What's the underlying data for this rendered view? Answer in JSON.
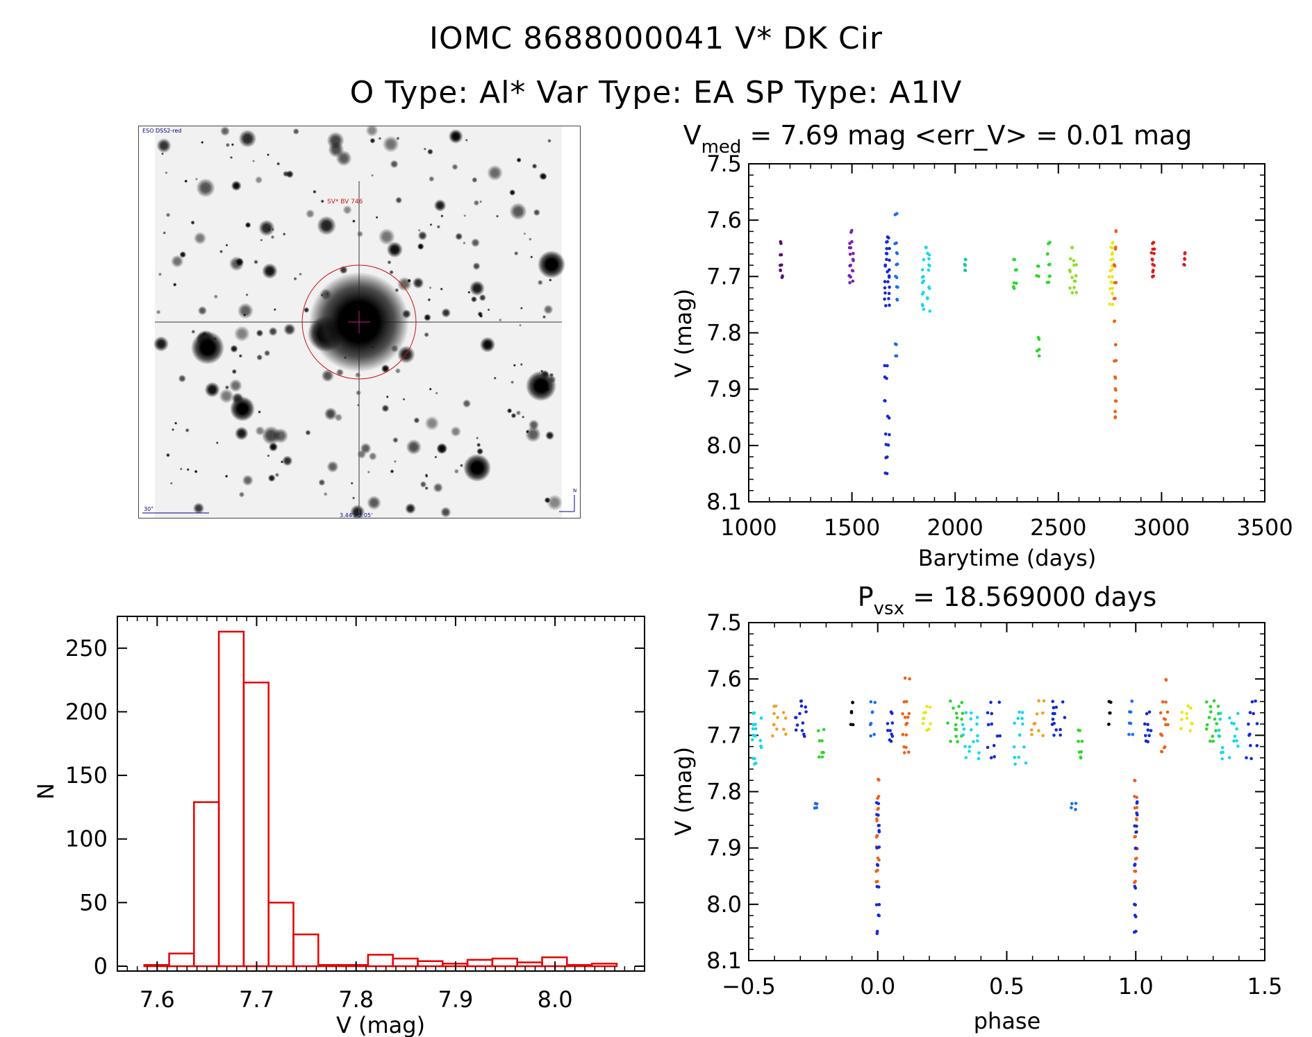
{
  "titles": {
    "line1": "IOMC 8688000041    V* DK Cir",
    "line2": "O Type: Al*  Var Type: EA  SP Type: A1IV"
  },
  "colors": {
    "histogram": "#e60000",
    "sky_marker": "#d01010",
    "sky_label": "#00008b",
    "point_palette": [
      "#000000",
      "#5a0a7a",
      "#7a1fb0",
      "#1428d8",
      "#1e6cf0",
      "#18d8e8",
      "#18c8a0",
      "#28d828",
      "#88e020",
      "#e8e818",
      "#f0a020",
      "#f06018",
      "#e01818"
    ]
  },
  "sky_image": {
    "survey_label": "ESO DSS2-red",
    "object_label": "SV* BV 746",
    "scale_label": "30\"",
    "fov_label": "3.44'x 3.05'",
    "north_label": "N"
  },
  "chart_data": [
    {
      "type": "scatter",
      "id": "lightcurve",
      "title": "V",
      "title_sub": "med",
      "title_rest": " = 7.69 mag <err_V> = 0.01 mag",
      "xlabel": "Barytime (days)",
      "ylabel": "V (mag)",
      "xlim": [
        1000,
        3500
      ],
      "ylim": [
        8.1,
        7.5
      ],
      "y_inverted": true,
      "xticks": [
        1000,
        1500,
        2000,
        2500,
        3000,
        3500
      ],
      "xtick_labels": [
        "1000",
        "1500",
        "2000",
        "2500",
        "3000",
        "3500"
      ],
      "yticks": [
        7.5,
        7.6,
        7.7,
        7.8,
        7.9,
        8.0,
        8.1
      ],
      "ytick_labels": [
        "7.5",
        "7.6",
        "7.7",
        "7.8",
        "7.9",
        "8.0",
        "8.1"
      ],
      "groups": [
        {
          "x": 1160,
          "xspread": 15,
          "ys": [
            7.64,
            7.66,
            7.68,
            7.69,
            7.7
          ],
          "color": "#5a0a7a"
        },
        {
          "x": 1495,
          "xspread": 25,
          "ys": [
            7.62,
            7.64,
            7.65,
            7.66,
            7.67,
            7.68,
            7.69,
            7.7,
            7.71
          ],
          "color": "#7a1fb0"
        },
        {
          "x": 1670,
          "xspread": 25,
          "ys": [
            7.63,
            7.64,
            7.65,
            7.66,
            7.67,
            7.68,
            7.69,
            7.7,
            7.71,
            7.72,
            7.73,
            7.74,
            7.75,
            7.86,
            7.88,
            7.92,
            7.95,
            7.98,
            8.0,
            8.02,
            8.05
          ],
          "color": "#1428d8"
        },
        {
          "x": 1715,
          "xspread": 15,
          "ys": [
            7.59,
            7.64,
            7.66,
            7.68,
            7.7,
            7.72,
            7.74,
            7.82,
            7.84
          ],
          "color": "#1e6cf0"
        },
        {
          "x": 1860,
          "xspread": 40,
          "ys": [
            7.65,
            7.66,
            7.67,
            7.68,
            7.69,
            7.7,
            7.71,
            7.72,
            7.73,
            7.74,
            7.75,
            7.76
          ],
          "color": "#18d8e8"
        },
        {
          "x": 2050,
          "xspread": 8,
          "ys": [
            7.67,
            7.68,
            7.69
          ],
          "color": "#18c8a0"
        },
        {
          "x": 2290,
          "xspread": 20,
          "ys": [
            7.67,
            7.69,
            7.71,
            7.72
          ],
          "color": "#28d828"
        },
        {
          "x": 2400,
          "xspread": 15,
          "ys": [
            7.68,
            7.7,
            7.81,
            7.83,
            7.84
          ],
          "color": "#28d828"
        },
        {
          "x": 2455,
          "xspread": 20,
          "ys": [
            7.64,
            7.66,
            7.68,
            7.7,
            7.71
          ],
          "color": "#28d828"
        },
        {
          "x": 2570,
          "xspread": 35,
          "ys": [
            7.65,
            7.67,
            7.68,
            7.69,
            7.7,
            7.71,
            7.72,
            7.73
          ],
          "color": "#88e020"
        },
        {
          "x": 2755,
          "xspread": 25,
          "ys": [
            7.64,
            7.65,
            7.66,
            7.67,
            7.68,
            7.69,
            7.7,
            7.71,
            7.72,
            7.73,
            7.75
          ],
          "color": "#e8e818"
        },
        {
          "x": 2775,
          "xspread": 10,
          "ys": [
            7.62,
            7.65,
            7.68,
            7.71,
            7.74,
            7.78,
            7.82,
            7.85,
            7.88,
            7.9,
            7.92,
            7.94,
            7.95
          ],
          "color": "#f06018"
        },
        {
          "x": 2960,
          "xspread": 18,
          "ys": [
            7.64,
            7.65,
            7.66,
            7.67,
            7.68,
            7.69,
            7.7
          ],
          "color": "#e01818"
        },
        {
          "x": 3110,
          "xspread": 8,
          "ys": [
            7.66,
            7.67,
            7.68
          ],
          "color": "#e01818"
        }
      ]
    },
    {
      "type": "scatter",
      "id": "phased",
      "title": "P",
      "title_sub": "vsx",
      "title_rest": " = 18.569000 days",
      "xlabel": "phase",
      "ylabel": "V (mag)",
      "xlim": [
        -0.5,
        1.5
      ],
      "ylim": [
        8.1,
        7.5
      ],
      "y_inverted": true,
      "xticks": [
        -0.5,
        0.0,
        0.5,
        1.0,
        1.5
      ],
      "xtick_labels": [
        "−0.5",
        "0.0",
        "0.5",
        "1.0",
        "1.5"
      ],
      "yticks": [
        7.5,
        7.6,
        7.7,
        7.8,
        7.9,
        8.0,
        8.1
      ],
      "ytick_labels": [
        "7.5",
        "7.6",
        "7.7",
        "7.8",
        "7.9",
        "8.0",
        "8.1"
      ],
      "groups": [
        {
          "x": -0.47,
          "xspread": 0.04,
          "ys": [
            7.66,
            7.67,
            7.68,
            7.69,
            7.7,
            7.71,
            7.72,
            7.74,
            7.75
          ],
          "color": "#18d8e8"
        },
        {
          "x": -0.38,
          "xspread": 0.06,
          "ys": [
            7.65,
            7.66,
            7.67,
            7.68,
            7.69,
            7.7
          ],
          "color": "#f0a020"
        },
        {
          "x": -0.3,
          "xspread": 0.05,
          "ys": [
            7.64,
            7.65,
            7.66,
            7.67,
            7.68,
            7.69,
            7.7
          ],
          "color": "#1428d8"
        },
        {
          "x": -0.24,
          "xspread": 0.02,
          "ys": [
            7.82,
            7.83
          ],
          "color": "#1e6cf0"
        },
        {
          "x": -0.22,
          "xspread": 0.03,
          "ys": [
            7.69,
            7.71,
            7.73,
            7.74
          ],
          "color": "#28d828"
        },
        {
          "x": -0.1,
          "xspread": 0.01,
          "ys": [
            7.64,
            7.66,
            7.68
          ],
          "color": "#000000"
        },
        {
          "x": -0.02,
          "xspread": 0.02,
          "ys": [
            7.64,
            7.66,
            7.68,
            7.7
          ],
          "color": "#1e6cf0"
        },
        {
          "x": 0.0,
          "xspread": 0.012,
          "ys": [
            7.78,
            7.81,
            7.83,
            7.85,
            7.88,
            7.9,
            7.92,
            7.94,
            7.96
          ],
          "color": "#f06018"
        },
        {
          "x": 0.0,
          "xspread": 0.012,
          "ys": [
            7.82,
            7.84,
            7.86,
            7.87,
            7.9,
            7.93,
            7.97,
            8.0,
            8.02,
            8.05
          ],
          "color": "#1428d8"
        },
        {
          "x": 0.05,
          "xspread": 0.03,
          "ys": [
            7.66,
            7.68,
            7.69,
            7.7,
            7.71
          ],
          "color": "#1428d8"
        },
        {
          "x": 0.11,
          "xspread": 0.03,
          "ys": [
            7.6,
            7.64,
            7.66,
            7.67,
            7.68,
            7.7,
            7.72,
            7.73
          ],
          "color": "#f06018"
        },
        {
          "x": 0.2,
          "xspread": 0.05,
          "ys": [
            7.65,
            7.66,
            7.67,
            7.68,
            7.69
          ],
          "color": "#e8e818"
        },
        {
          "x": 0.3,
          "xspread": 0.06,
          "ys": [
            7.64,
            7.65,
            7.66,
            7.67,
            7.68,
            7.69,
            7.7,
            7.71
          ],
          "color": "#28d828"
        },
        {
          "x": 0.36,
          "xspread": 0.08,
          "ys": [
            7.66,
            7.67,
            7.68,
            7.69,
            7.7,
            7.71,
            7.72,
            7.73,
            7.74
          ],
          "color": "#18d8e8"
        },
        {
          "x": 0.45,
          "xspread": 0.05,
          "ys": [
            7.64,
            7.66,
            7.68,
            7.7,
            7.72,
            7.74
          ],
          "color": "#1428d8"
        },
        {
          "x": 0.55,
          "xspread": 0.05,
          "ys": [
            7.66,
            7.67,
            7.68,
            7.7,
            7.72,
            7.74,
            7.75
          ],
          "color": "#18d8e8"
        },
        {
          "x": 0.62,
          "xspread": 0.05,
          "ys": [
            7.64,
            7.66,
            7.68,
            7.69,
            7.7
          ],
          "color": "#f0a020"
        },
        {
          "x": 0.7,
          "xspread": 0.05,
          "ys": [
            7.64,
            7.65,
            7.66,
            7.67,
            7.68,
            7.69,
            7.7
          ],
          "color": "#1428d8"
        },
        {
          "x": 0.76,
          "xspread": 0.02,
          "ys": [
            7.82,
            7.83
          ],
          "color": "#1e6cf0"
        },
        {
          "x": 0.78,
          "xspread": 0.03,
          "ys": [
            7.69,
            7.71,
            7.73,
            7.74
          ],
          "color": "#28d828"
        },
        {
          "x": 0.9,
          "xspread": 0.01,
          "ys": [
            7.64,
            7.66,
            7.68
          ],
          "color": "#000000"
        },
        {
          "x": 0.98,
          "xspread": 0.02,
          "ys": [
            7.64,
            7.66,
            7.68,
            7.7
          ],
          "color": "#1e6cf0"
        },
        {
          "x": 1.0,
          "xspread": 0.012,
          "ys": [
            7.78,
            7.81,
            7.83,
            7.85,
            7.88,
            7.9,
            7.92,
            7.94,
            7.96
          ],
          "color": "#f06018"
        },
        {
          "x": 1.0,
          "xspread": 0.012,
          "ys": [
            7.82,
            7.84,
            7.86,
            7.87,
            7.9,
            7.93,
            7.97,
            8.0,
            8.02,
            8.05
          ],
          "color": "#1428d8"
        },
        {
          "x": 1.05,
          "xspread": 0.03,
          "ys": [
            7.66,
            7.68,
            7.69,
            7.7,
            7.71
          ],
          "color": "#1428d8"
        },
        {
          "x": 1.11,
          "xspread": 0.03,
          "ys": [
            7.6,
            7.64,
            7.66,
            7.67,
            7.68,
            7.7,
            7.72,
            7.73
          ],
          "color": "#f06018"
        },
        {
          "x": 1.2,
          "xspread": 0.05,
          "ys": [
            7.65,
            7.66,
            7.67,
            7.68,
            7.69
          ],
          "color": "#e8e818"
        },
        {
          "x": 1.3,
          "xspread": 0.06,
          "ys": [
            7.64,
            7.65,
            7.66,
            7.67,
            7.68,
            7.69,
            7.7,
            7.71
          ],
          "color": "#28d828"
        },
        {
          "x": 1.36,
          "xspread": 0.08,
          "ys": [
            7.66,
            7.67,
            7.68,
            7.69,
            7.7,
            7.71,
            7.72,
            7.73,
            7.74
          ],
          "color": "#18d8e8"
        },
        {
          "x": 1.45,
          "xspread": 0.05,
          "ys": [
            7.64,
            7.66,
            7.68,
            7.7,
            7.72,
            7.74
          ],
          "color": "#1428d8"
        }
      ]
    },
    {
      "type": "bar",
      "id": "histogram",
      "style": "histogram-outline",
      "xlabel": "V (mag)",
      "ylabel": "N",
      "xlim": [
        7.56,
        8.09
      ],
      "ylim": [
        0,
        275
      ],
      "bin_width": 0.025,
      "bin_starts": [
        7.587,
        7.612,
        7.637,
        7.662,
        7.687,
        7.712,
        7.737,
        7.762,
        7.787,
        7.812,
        7.837,
        7.862,
        7.887,
        7.912,
        7.937,
        7.962,
        7.987,
        8.012,
        8.037
      ],
      "values": [
        1,
        10,
        129,
        263,
        223,
        50,
        25,
        1,
        1,
        9,
        6,
        4,
        2,
        5,
        6,
        3,
        7,
        1,
        2
      ],
      "xticks": [
        7.6,
        7.7,
        7.8,
        7.9,
        8.0
      ],
      "xtick_labels": [
        "7.6",
        "7.7",
        "7.8",
        "7.9",
        "8.0"
      ],
      "yticks": [
        0,
        50,
        100,
        150,
        200,
        250
      ],
      "ytick_labels": [
        "0",
        "50",
        "100",
        "150",
        "200",
        "250"
      ]
    }
  ]
}
